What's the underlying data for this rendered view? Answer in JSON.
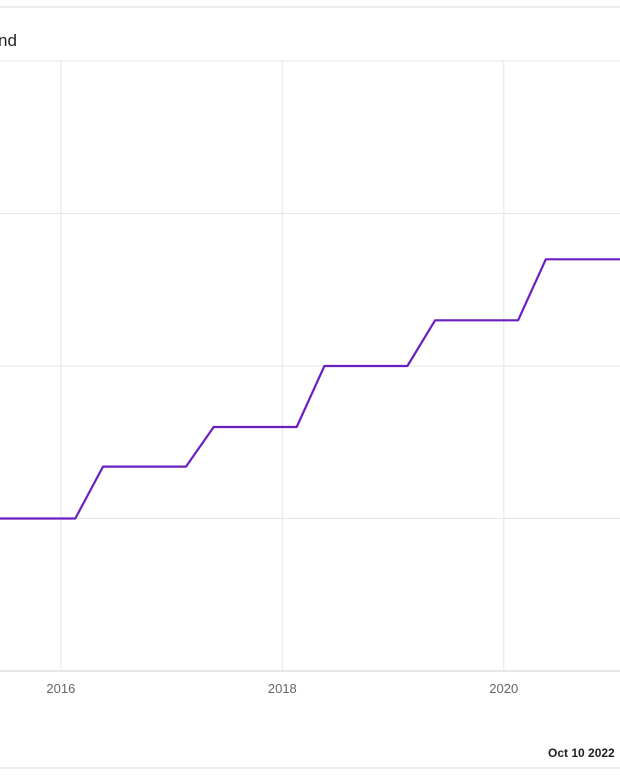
{
  "header": {
    "title_fragment": "nd"
  },
  "footer": {
    "date_text": "Oct 10 2022"
  },
  "colors": {
    "line": "#6a1fc0",
    "grid": "#e6e6e6",
    "divider": "#d9d9d9"
  },
  "chart_data": {
    "type": "line",
    "title": "",
    "xlabel": "",
    "ylabel": "",
    "x_tick_labels": [
      "2016",
      "2018",
      "2020"
    ],
    "x_ticks": [
      2016,
      2018,
      2020
    ],
    "xlim": [
      2015.45,
      2021.05
    ],
    "ylim": [
      0,
      4
    ],
    "grid": true,
    "series": [
      {
        "x": [
          2015.45,
          2016.13,
          2016.38,
          2017.13,
          2017.38,
          2018.13,
          2018.38,
          2019.13,
          2019.38,
          2020.13,
          2020.38,
          2021.05
        ],
        "values": [
          1.0,
          1.0,
          1.34,
          1.34,
          1.6,
          1.6,
          2.0,
          2.0,
          2.3,
          2.3,
          2.7,
          2.7
        ]
      }
    ]
  }
}
